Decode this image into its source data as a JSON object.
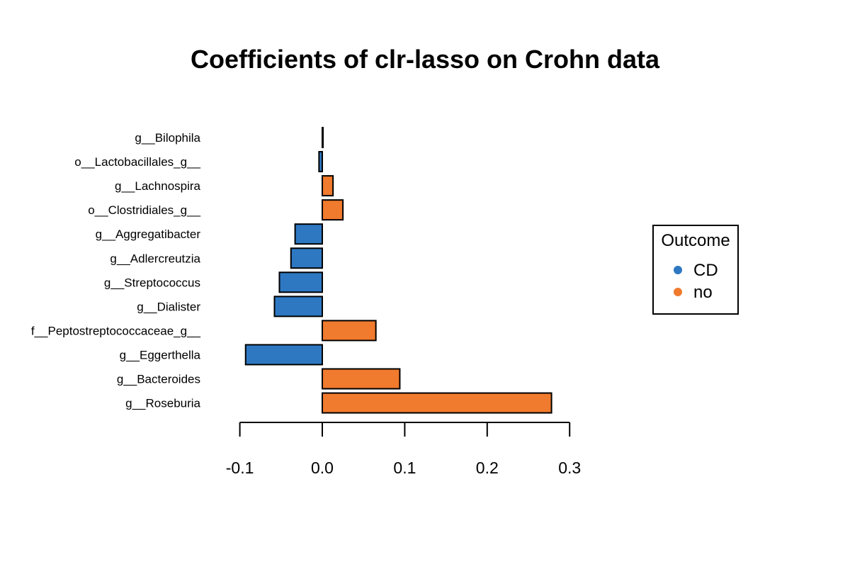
{
  "chart_data": {
    "type": "bar",
    "orientation": "horizontal",
    "title": "Coefficients of clr-lasso on Crohn data",
    "xlabel": "",
    "ylabel": "",
    "xlim": [
      -0.1,
      0.3
    ],
    "xticks": [
      -0.1,
      0.0,
      0.1,
      0.2,
      0.3
    ],
    "xtick_labels": [
      "-0.1",
      "0.0",
      "0.1",
      "0.2",
      "0.3"
    ],
    "categories": [
      "g__Bilophila",
      "o__Lactobacillales_g__",
      "g__Lachnospira",
      "o__Clostridiales_g__",
      "g__Aggregatibacter",
      "g__Adlercreutzia",
      "g__Streptococcus",
      "g__Dialister",
      "f__Peptostreptococcaceae_g__",
      "g__Eggerthella",
      "g__Bacteroides",
      "g__Roseburia"
    ],
    "values": [
      0.0005,
      -0.004,
      0.013,
      0.025,
      -0.033,
      -0.038,
      -0.052,
      -0.058,
      0.065,
      -0.093,
      0.094,
      0.278
    ],
    "groups": [
      "CD",
      "CD",
      "no",
      "no",
      "CD",
      "CD",
      "CD",
      "CD",
      "no",
      "CD",
      "no",
      "no"
    ],
    "grid": false,
    "legend": {
      "title": "Outcome",
      "placement": "right",
      "entries": [
        {
          "label": "CD",
          "color": "#2E78C2"
        },
        {
          "label": "no",
          "color": "#F07A2D"
        }
      ]
    }
  }
}
